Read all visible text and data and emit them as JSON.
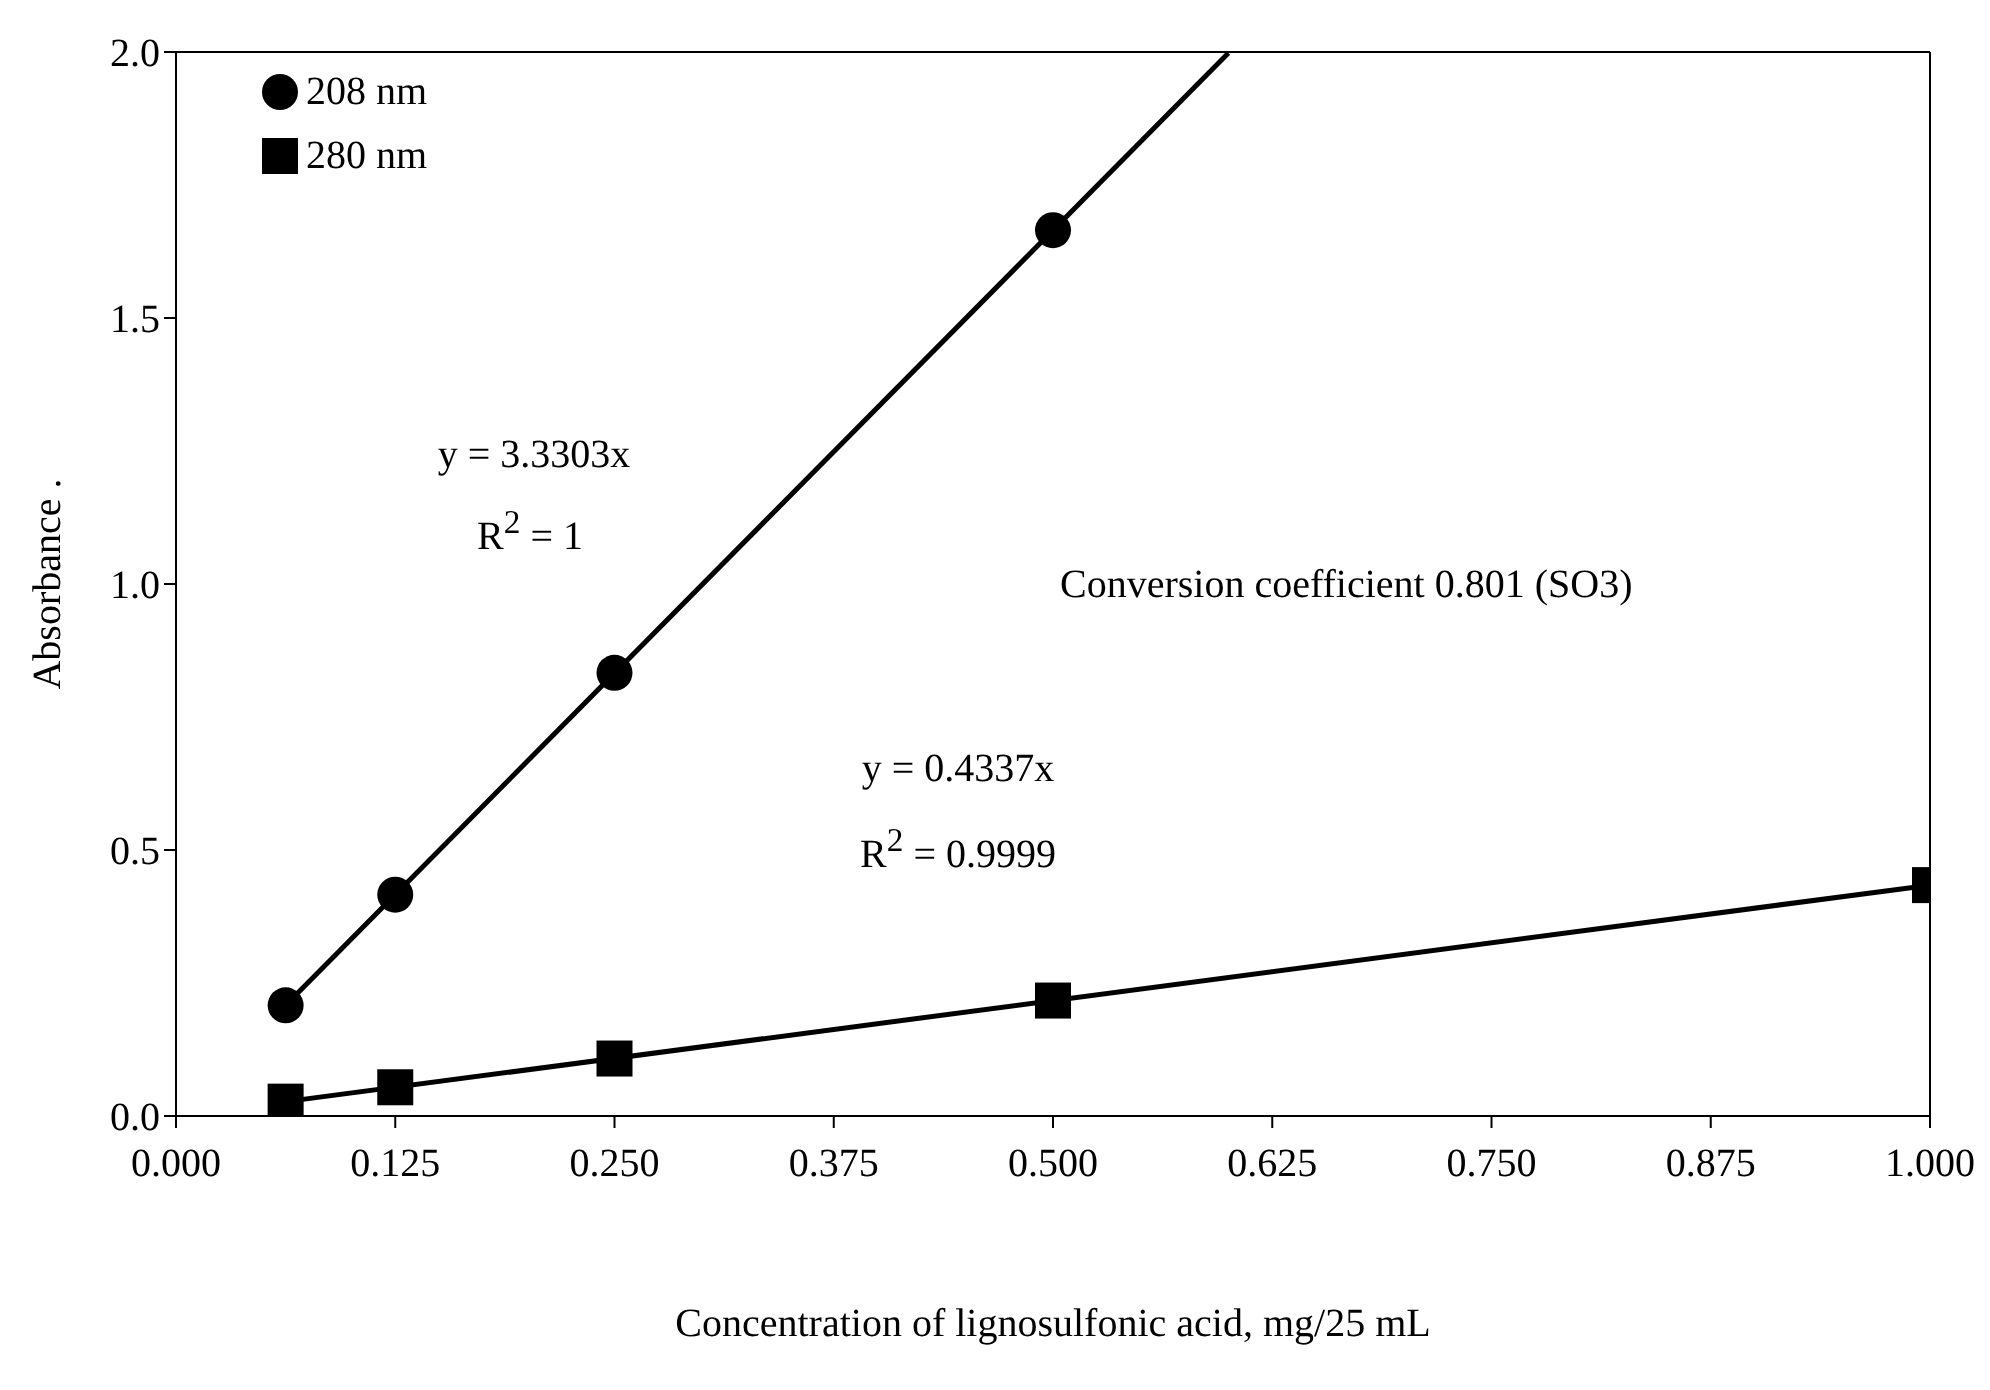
{
  "chart_data": {
    "type": "scatter",
    "xlabel": "Concentration of lignosulfonic acid, mg/25 mL",
    "ylabel": "Absorbance .",
    "x": [
      0.0625,
      0.125,
      0.25,
      0.5,
      1.0
    ],
    "series": [
      {
        "name": "208 nm",
        "color": "#000000",
        "marker": "circle",
        "values": [
          0.208,
          0.416,
          0.833,
          1.665,
          null
        ]
      },
      {
        "name": "280 nm",
        "color": "#000000",
        "marker": "square",
        "values": [
          0.027,
          0.054,
          0.108,
          0.217,
          0.434
        ]
      },
      {
        "type": "line",
        "color": "#000000",
        "x": [
          0.0625,
          0.6
        ],
        "values": [
          0.208,
          1.998
        ]
      },
      {
        "type": "line",
        "color": "#000000",
        "x": [
          0.0625,
          1.0
        ],
        "values": [
          0.027,
          0.434
        ]
      }
    ],
    "xlim": [
      0,
      1
    ],
    "xticks": [
      {
        "value": 0,
        "label": "0.000"
      },
      {
        "value": 0.125,
        "label": "0.125"
      },
      {
        "value": 0.25,
        "label": "0.250"
      },
      {
        "value": 0.375,
        "label": "0.375"
      },
      {
        "value": 0.5,
        "label": "0.500"
      },
      {
        "value": 0.625,
        "label": "0.625"
      },
      {
        "value": 0.75,
        "label": "0.750"
      },
      {
        "value": 0.875,
        "label": "0.875"
      },
      {
        "value": 1,
        "label": "1.000"
      }
    ],
    "ylim": [
      0,
      2
    ],
    "yticks": [
      {
        "value": 0,
        "label": "0.0"
      },
      {
        "value": 0.5,
        "label": "0.5"
      },
      {
        "value": 1,
        "label": "1.0"
      },
      {
        "value": 1.5,
        "label": "1.5"
      },
      {
        "value": 2,
        "label": "2.0"
      }
    ],
    "legend": "top left",
    "annotations": [
      "y = 3.3303x",
      "R$^{2}$ = 1",
      "y = 0.4337x",
      "R$^{2}$ = 0.9999",
      "Conversion coefficient 0.801 (SO3)"
    ]
  }
}
